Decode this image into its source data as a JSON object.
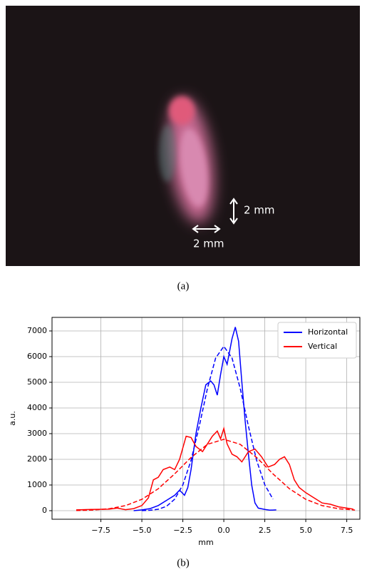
{
  "panel_a": {
    "caption": "(a)",
    "vertical_scale": "2 mm",
    "horizontal_scale": "2 mm"
  },
  "chart_data": {
    "type": "line",
    "caption": "(b)",
    "xlabel": "mm",
    "ylabel": "a.u.",
    "xlim": [
      -10.48,
      8.3
    ],
    "ylim": [
      -333,
      7528
    ],
    "xticks": [
      {
        "value": -7.5,
        "label": "−7.5"
      },
      {
        "value": -5,
        "label": "−5.0"
      },
      {
        "value": -2.5,
        "label": "−2.5"
      },
      {
        "value": 0,
        "label": "0.0"
      },
      2.5,
      {
        "value": 5,
        "label": "5.0"
      },
      7.5
    ],
    "yticks": [
      0,
      1000,
      2000,
      3000,
      4000,
      5000,
      6000,
      7000
    ],
    "grid": true,
    "legend": "upper right",
    "series": [
      {
        "name": "Horizontal",
        "color": "#0000ff",
        "dashed": false,
        "x": [
          -5.5,
          -5,
          -4.5,
          -4,
          -3.5,
          -3,
          -2.7,
          -2.4,
          -2.2,
          -2,
          -1.7,
          -1.4,
          -1.1,
          -0.8,
          -0.6,
          -0.4,
          -0.2,
          0,
          0.2,
          0.5,
          0.7,
          0.9,
          1.1,
          1.3,
          1.5,
          1.7,
          1.9,
          2.1,
          2.5,
          2.8,
          3.2
        ],
        "values": [
          0,
          30,
          80,
          200,
          400,
          600,
          800,
          600,
          900,
          1600,
          3000,
          4000,
          4900,
          5050,
          4900,
          4500,
          5300,
          6000,
          5700,
          6700,
          7150,
          6600,
          5000,
          3500,
          2200,
          1000,
          300,
          100,
          50,
          20,
          30
        ]
      },
      {
        "name": "Vertical",
        "color": "#ff0000",
        "dashed": false,
        "x": [
          -9,
          -8,
          -7,
          -6.5,
          -6,
          -5.5,
          -5,
          -4.6,
          -4.3,
          -4,
          -3.7,
          -3.3,
          -3,
          -2.7,
          -2.3,
          -2,
          -1.7,
          -1.3,
          -1,
          -0.7,
          -0.4,
          -0.2,
          0,
          0.2,
          0.5,
          0.8,
          1.1,
          1.5,
          1.9,
          2.3,
          2.7,
          3.1,
          3.4,
          3.7,
          4,
          4.3,
          4.6,
          5,
          5.5,
          6,
          6.5,
          7,
          7.5,
          7.9
        ],
        "values": [
          30,
          50,
          60,
          100,
          40,
          80,
          200,
          500,
          1200,
          1300,
          1600,
          1700,
          1600,
          2000,
          2900,
          2850,
          2500,
          2300,
          2600,
          2900,
          3100,
          2800,
          3200,
          2600,
          2200,
          2100,
          1900,
          2300,
          2400,
          2100,
          1700,
          1800,
          2000,
          2100,
          1800,
          1200,
          900,
          700,
          500,
          300,
          250,
          150,
          100,
          60
        ]
      },
      {
        "color": "#0000ff",
        "dashed": true,
        "x": [
          -5,
          -4.5,
          -4,
          -3.5,
          -3,
          -2.5,
          -2,
          -1.5,
          -1,
          -0.5,
          0,
          0.5,
          1,
          1.5,
          2,
          2.5,
          3
        ],
        "values": [
          4,
          16,
          57,
          171,
          447,
          1007,
          1961,
          3288,
          4761,
          5944,
          6400,
          5944,
          4761,
          3288,
          1961,
          1007,
          447
        ]
      },
      {
        "color": "#ff0000",
        "dashed": true,
        "x": [
          -9,
          -8,
          -7,
          -6,
          -5,
          -4,
          -3,
          -2,
          -1,
          0,
          1,
          2,
          3,
          4,
          5,
          6,
          7,
          8
        ],
        "values": [
          7,
          25,
          76,
          197,
          442,
          857,
          1434,
          2072,
          2583,
          2780,
          2583,
          2072,
          1434,
          857,
          442,
          197,
          76,
          25
        ]
      }
    ]
  }
}
